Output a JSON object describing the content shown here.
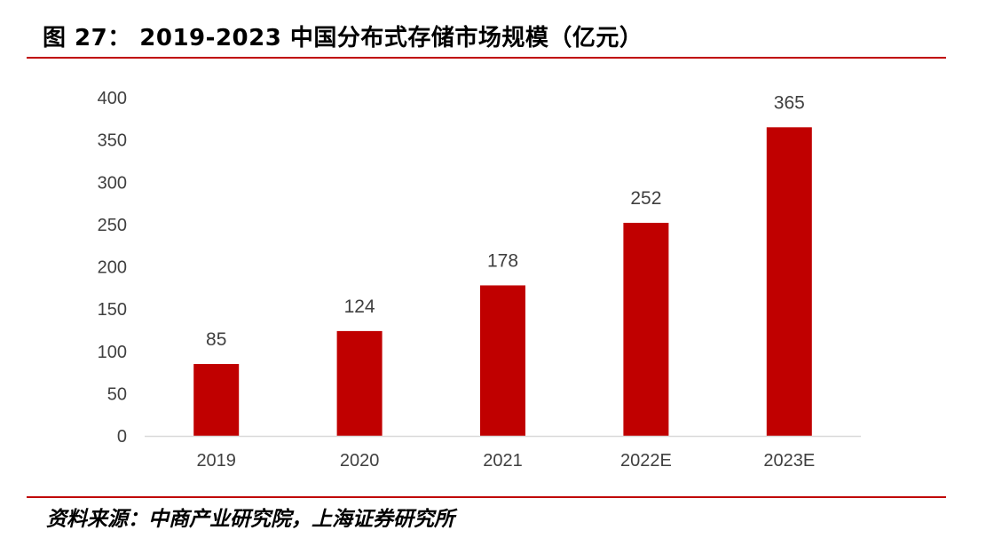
{
  "figure": {
    "title": "图 27： 2019-2023 中国分布式存储市场规模（亿元）",
    "source": "资料来源：中商产业研究院，上海证券研究所"
  },
  "colors": {
    "accent": "#c00000",
    "bar": "#c00000",
    "axis": "#d9d9d9",
    "text": "#404040"
  },
  "chart_data": {
    "type": "bar",
    "title": "2019-2023 中国分布式存储市场规模（亿元）",
    "categories": [
      "2019",
      "2020",
      "2021",
      "2022E",
      "2023E"
    ],
    "series": [
      {
        "values": [
          85,
          124,
          178,
          252,
          365
        ]
      }
    ],
    "ylim": [
      0,
      400
    ],
    "yticks": [
      0,
      50,
      100,
      150,
      200,
      250,
      300,
      350,
      400
    ],
    "xlabel": "",
    "ylabel": "",
    "grid": false,
    "legend": "none",
    "data_labels": true
  }
}
